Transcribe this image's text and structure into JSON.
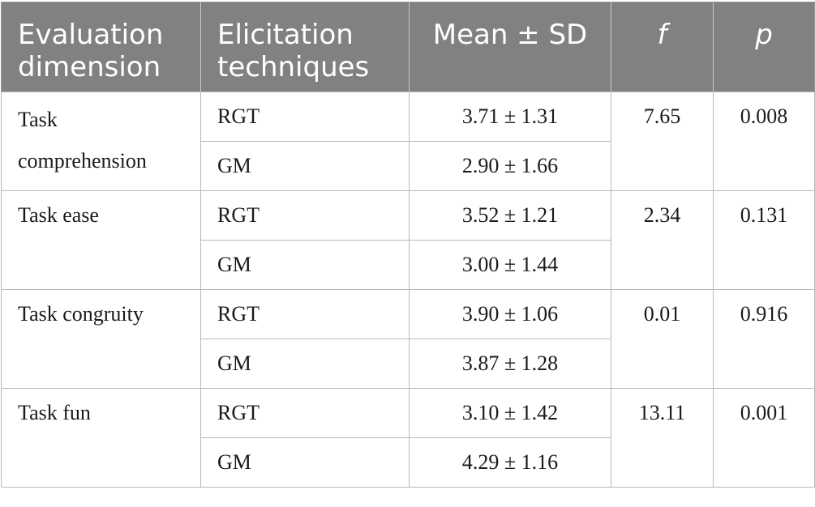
{
  "headers": {
    "dimension": "Evaluation dimension",
    "technique": "Elicitation techniques",
    "mean_sd": "Mean ± SD",
    "f": "f",
    "p": "p"
  },
  "groups": [
    {
      "dimension": "Task comprehension",
      "f": "7.65",
      "p": "0.008",
      "rows": [
        {
          "technique": "RGT",
          "mean_sd": "3.71 ± 1.31"
        },
        {
          "technique": "GM",
          "mean_sd": "2.90 ± 1.66"
        }
      ]
    },
    {
      "dimension": "Task ease",
      "f": "2.34",
      "p": "0.131",
      "rows": [
        {
          "technique": "RGT",
          "mean_sd": "3.52 ± 1.21"
        },
        {
          "technique": "GM",
          "mean_sd": "3.00 ± 1.44"
        }
      ]
    },
    {
      "dimension": "Task congruity",
      "f": "0.01",
      "p": "0.916",
      "rows": [
        {
          "technique": "RGT",
          "mean_sd": "3.90 ± 1.06"
        },
        {
          "technique": "GM",
          "mean_sd": "3.87 ± 1.28"
        }
      ]
    },
    {
      "dimension": "Task fun",
      "f": "13.11",
      "p": "0.001",
      "rows": [
        {
          "technique": "RGT",
          "mean_sd": "3.10 ± 1.42"
        },
        {
          "technique": "GM",
          "mean_sd": "4.29 ± 1.16"
        }
      ]
    }
  ],
  "colors": {
    "header_bg": "#7f8281",
    "header_text": "#ffffff",
    "border": "#b7b9b8"
  }
}
